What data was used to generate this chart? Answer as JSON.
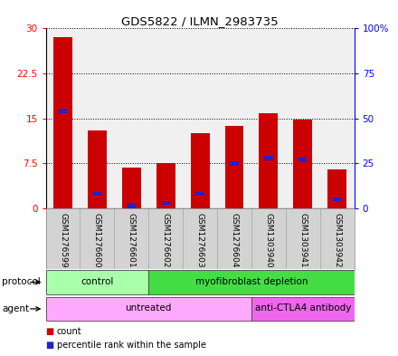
{
  "title": "GDS5822 / ILMN_2983735",
  "samples": [
    "GSM1276599",
    "GSM1276600",
    "GSM1276601",
    "GSM1276602",
    "GSM1276603",
    "GSM1276604",
    "GSM1303940",
    "GSM1303941",
    "GSM1303942"
  ],
  "count_values": [
    28.5,
    13.0,
    6.8,
    7.5,
    12.5,
    13.8,
    15.8,
    14.8,
    6.5
  ],
  "percentile_values": [
    54,
    8,
    0,
    3,
    8,
    25,
    28,
    27,
    5
  ],
  "ylim_left": [
    0,
    30
  ],
  "ylim_right": [
    0,
    100
  ],
  "yticks_left": [
    0,
    7.5,
    15,
    22.5,
    30
  ],
  "yticks_right": [
    0,
    25,
    50,
    75,
    100
  ],
  "yticklabels_left": [
    "0",
    "7.5",
    "15",
    "22.5",
    "30"
  ],
  "yticklabels_right": [
    "0",
    "25",
    "50",
    "75",
    "100%"
  ],
  "bar_color": "#cc0000",
  "percentile_color": "#2222cc",
  "bar_width": 0.55,
  "protocol_groups": [
    {
      "label": "control",
      "start": 0,
      "end": 3,
      "color": "#aaffaa"
    },
    {
      "label": "myofibroblast depletion",
      "start": 3,
      "end": 9,
      "color": "#44dd44"
    }
  ],
  "agent_groups": [
    {
      "label": "untreated",
      "start": 0,
      "end": 6,
      "color": "#ffaaff"
    },
    {
      "label": "anti-CTLA4 antibody",
      "start": 6,
      "end": 9,
      "color": "#ee66ee"
    }
  ],
  "legend_items": [
    {
      "label": "count",
      "color": "#cc0000"
    },
    {
      "label": "percentile rank within the sample",
      "color": "#2222cc"
    }
  ],
  "background_color": "#ffffff",
  "plot_bg": "#f0f0f0",
  "label_bg": "#d3d3d3"
}
